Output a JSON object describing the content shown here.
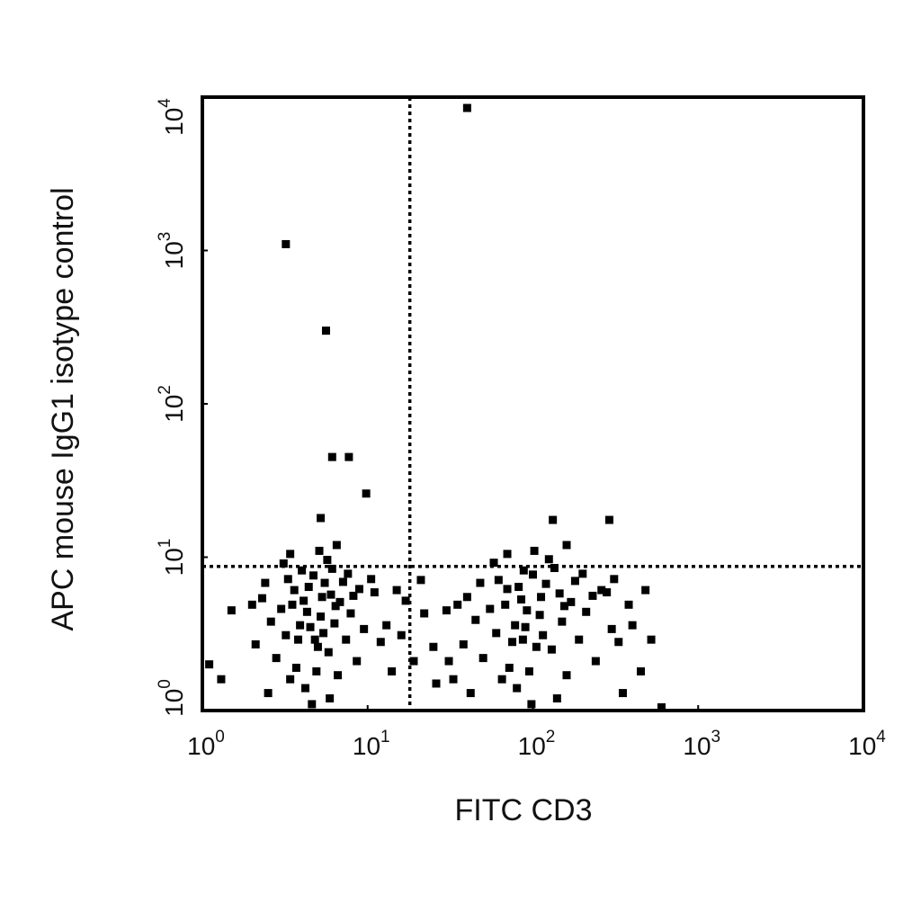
{
  "chart_data": {
    "type": "scatter",
    "x_label": "FITC CD3",
    "y_label": "APC mouse IgG1 isotype control",
    "xscale": "log",
    "yscale": "log",
    "color": "#000000",
    "xlim": [
      1,
      10000
    ],
    "ylim": [
      1,
      10000
    ],
    "xticks": [
      {
        "value": 1,
        "label": "10",
        "exponent": "0"
      },
      {
        "value": 10,
        "label": "10",
        "exponent": "1"
      },
      {
        "value": 100,
        "label": "10",
        "exponent": "2"
      },
      {
        "value": 1000,
        "label": "10",
        "exponent": "3"
      },
      {
        "value": 10000,
        "label": "10",
        "exponent": "4"
      }
    ],
    "yticks": [
      {
        "value": 1,
        "label": "10",
        "exponent": "0"
      },
      {
        "value": 10,
        "label": "10",
        "exponent": "1"
      },
      {
        "value": 100,
        "label": "10",
        "exponent": "2"
      },
      {
        "value": 1000,
        "label": "10",
        "exponent": "3"
      },
      {
        "value": 10000,
        "label": "10",
        "exponent": "4"
      }
    ],
    "gates": {
      "x": 18,
      "y": 8.7
    },
    "x": [
      4.5,
      3.8,
      5.2,
      4.1,
      5.8,
      3.2,
      4.9,
      6.3,
      3.6,
      5.5,
      4.2,
      2.8,
      3.0,
      6.8,
      7.4,
      4.7,
      5.9,
      3.4,
      2.6,
      4.0,
      6.1,
      3.3,
      7.9,
      8.6,
      2.3,
      2.1,
      5.0,
      4.3,
      3.9,
      5.4,
      6.6,
      3.1,
      5.7,
      7.1,
      8.9,
      2.5,
      4.6,
      3.7,
      6.0,
      4.4,
      9.5,
      2.0,
      1.5,
      1.3,
      1.1,
      2.4,
      6.4,
      5.3,
      3.5,
      4.8,
      7.6,
      8.2,
      5.1,
      6.5,
      3.4,
      11,
      12,
      10.5,
      13,
      14,
      15,
      16,
      19,
      17,
      22,
      25,
      21,
      26,
      90,
      75,
      110,
      85,
      130,
      60,
      95,
      150,
      70,
      120,
      80,
      50,
      55,
      170,
      190,
      100,
      140,
      65,
      45,
      88,
      135,
      62,
      210,
      240,
      40,
      38,
      105,
      92,
      78,
      115,
      160,
      58,
      125,
      180,
      260,
      42,
      98,
      72,
      145,
      82,
      300,
      35,
      30,
      33,
      31,
      48,
      155,
      112,
      68,
      87,
      200,
      230,
      102,
      160,
      70,
      280,
      330,
      310,
      400,
      450,
      480,
      380,
      520,
      600,
      350,
      40,
      3.2,
      5.6,
      6.1,
      7.7,
      9.8,
      5.2,
      132,
      290
    ],
    "values": [
      3.5,
      2.9,
      4.1,
      5.2,
      2.4,
      3.1,
      1.8,
      3.7,
      6.1,
      6.8,
      1.4,
      2.2,
      4.6,
      5.1,
      2.9,
      7.6,
      1.2,
      1.6,
      3.8,
      8.2,
      8.4,
      7.2,
      4.3,
      2.1,
      5.4,
      2.7,
      2.6,
      4.4,
      3.6,
      3.2,
      1.7,
      9.1,
      9.6,
      6.9,
      6.2,
      1.3,
      1.1,
      1.9,
      5.7,
      6.4,
      3.4,
      4.9,
      4.5,
      1.6,
      2.0,
      6.8,
      4.8,
      5.5,
      4.9,
      2.9,
      7.8,
      5.6,
      11,
      12,
      10.5,
      5.9,
      2.8,
      7.2,
      3.6,
      1.8,
      6.1,
      3.1,
      2.1,
      5.2,
      4.3,
      2.6,
      7.1,
      1.5,
      3.5,
      2.8,
      4.2,
      5.3,
      2.5,
      3.2,
      1.8,
      3.8,
      6.2,
      6.7,
      1.4,
      2.2,
      4.6,
      5.1,
      2.9,
      7.7,
      1.2,
      1.6,
      3.9,
      8.2,
      8.5,
      7.1,
      4.4,
      2.1,
      5.5,
      2.7,
      2.6,
      4.5,
      3.6,
      3.1,
      1.7,
      9.2,
      9.7,
      7,
      6.1,
      1.3,
      1.1,
      1.9,
      5.8,
      6.4,
      3.4,
      4.9,
      4.5,
      1.6,
      2.1,
      6.8,
      4.8,
      5.5,
      4.9,
      2.9,
      7.8,
      5.6,
      11,
      12,
      10.5,
      5.9,
      2.8,
      7.2,
      3.6,
      1.8,
      6.1,
      4.9,
      2.9,
      1.05,
      1.3,
      8500,
      1100,
      300,
      45,
      45,
      26,
      18,
      17.5,
      17.5
    ]
  }
}
